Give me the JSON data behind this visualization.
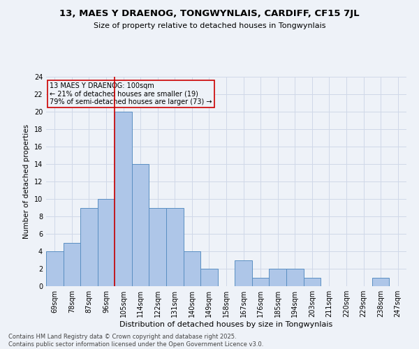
{
  "title1": "13, MAES Y DRAENOG, TONGWYNLAIS, CARDIFF, CF15 7JL",
  "title2": "Size of property relative to detached houses in Tongwynlais",
  "xlabel": "Distribution of detached houses by size in Tongwynlais",
  "ylabel": "Number of detached properties",
  "footer_line1": "Contains HM Land Registry data © Crown copyright and database right 2025.",
  "footer_line2": "Contains public sector information licensed under the Open Government Licence v3.0.",
  "annotation_line1": "13 MAES Y DRAENOG: 100sqm",
  "annotation_line2": "← 21% of detached houses are smaller (19)",
  "annotation_line3": "79% of semi-detached houses are larger (73) →",
  "bar_labels": [
    "69sqm",
    "78sqm",
    "87sqm",
    "96sqm",
    "105sqm",
    "114sqm",
    "122sqm",
    "131sqm",
    "140sqm",
    "149sqm",
    "158sqm",
    "167sqm",
    "176sqm",
    "185sqm",
    "194sqm",
    "203sqm",
    "211sqm",
    "220sqm",
    "229sqm",
    "238sqm",
    "247sqm"
  ],
  "bar_values": [
    4,
    5,
    9,
    10,
    20,
    14,
    9,
    9,
    4,
    2,
    0,
    3,
    1,
    2,
    2,
    1,
    0,
    0,
    0,
    1,
    0
  ],
  "bar_color": "#aec6e8",
  "bar_edge_color": "#5a8fc2",
  "grid_color": "#d0d8e8",
  "background_color": "#eef2f8",
  "vline_x_index": 3.5,
  "vline_color": "#cc0000",
  "annotation_box_color": "#cc0000",
  "ylim": [
    0,
    24
  ],
  "yticks": [
    0,
    2,
    4,
    6,
    8,
    10,
    12,
    14,
    16,
    18,
    20,
    22,
    24
  ],
  "title1_fontsize": 9.5,
  "title2_fontsize": 8.0,
  "ylabel_fontsize": 7.5,
  "xlabel_fontsize": 8.0,
  "tick_fontsize": 7.0,
  "footer_fontsize": 6.0,
  "annotation_fontsize": 7.0
}
